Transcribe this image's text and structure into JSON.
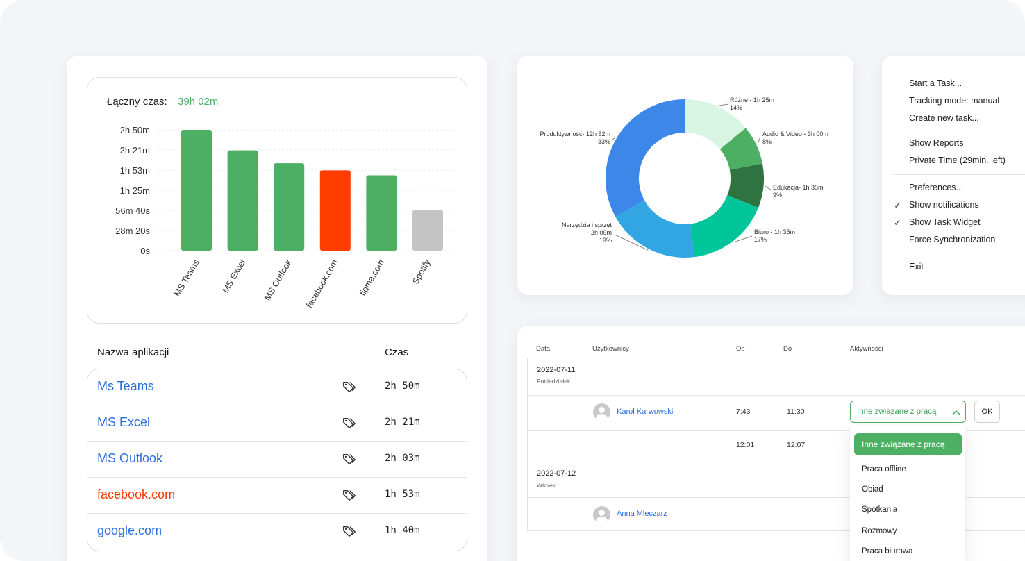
{
  "colors": {
    "accent_green": "#4caf63",
    "link_blue": "#2b6fde",
    "alert_red": "#f53a05",
    "neutral_gray": "#c4c4c4"
  },
  "summary": {
    "total_label": "Łączny czas:",
    "total_value": "39h 02m"
  },
  "chart_data": [
    {
      "type": "bar",
      "categories": [
        "MS Teams",
        "MS Excel",
        "MS Outlook",
        "facebook.com",
        "figma.com",
        "Spotify"
      ],
      "values_minutes": [
        170,
        141,
        123,
        113,
        106,
        57
      ],
      "bar_colors": [
        "#4caf63",
        "#4caf63",
        "#4caf63",
        "#ff3d00",
        "#4caf63",
        "#c4c4c4"
      ],
      "yticks": [
        "2h 50m",
        "2h 21m",
        "1h 53m",
        "1h 25m",
        "56m 40s",
        "28m 20s",
        "0s"
      ],
      "ylim_minutes": [
        0,
        170
      ],
      "grid": true
    },
    {
      "type": "pie",
      "donut": true,
      "slices": [
        {
          "label": "Różne - 1h 25m",
          "percent_label": "14%",
          "value": 14,
          "color": "#d8f5e3"
        },
        {
          "label": "Audio & Video - 3h 00m",
          "percent_label": "8%",
          "value": 8,
          "color": "#4caf63"
        },
        {
          "label": "Edukacja- 1h 35m",
          "percent_label": "9%",
          "value": 9,
          "color": "#2e7340"
        },
        {
          "label": "Biuro - 1h 35m",
          "percent_label": "17%",
          "value": 17,
          "color": "#00c49a"
        },
        {
          "label_line1": "Narzędzia i sprzęt",
          "label_line2": "- 2h 09m",
          "percent_label": "19%",
          "value": 19,
          "color": "#32a5e3"
        },
        {
          "label": "Produktywność- 12h 52m",
          "percent_label": "33%",
          "value": 33,
          "color": "#3d87e8"
        }
      ]
    }
  ],
  "app_table": {
    "col_name": "Nazwa aplikacji",
    "col_time": "Czas",
    "rows": [
      {
        "name": "Ms Teams",
        "time": "2h 50m",
        "color": "#2b6fde"
      },
      {
        "name": "MS Excel",
        "time": "2h 21m",
        "color": "#2b6fde"
      },
      {
        "name": "MS Outlook",
        "time": "2h 03m",
        "color": "#2b6fde"
      },
      {
        "name": "facebook.com",
        "time": "1h 53m",
        "color": "#f53a05"
      },
      {
        "name": "google.com",
        "time": "1h 40m",
        "color": "#2b6fde"
      }
    ]
  },
  "menu": {
    "items": [
      "Start a Task...",
      "Tracking mode: manual",
      "Create new task...",
      "Show Reports",
      "Private Time (29min. left)",
      "Preferences...",
      "Show notifications",
      "Show Task Widget",
      "Force Synchronization",
      "Exit"
    ],
    "check": "✓"
  },
  "timesheet": {
    "headers": {
      "date": "Data",
      "users": "Użytkownicy",
      "from": "Od",
      "to": "Do",
      "activities": "Aktywności"
    },
    "day1": {
      "date": "2022-07-11",
      "weekday": "Poniedziałek"
    },
    "row1": {
      "user": "Karol Karwowski",
      "from": "7:43",
      "to": "11:30",
      "activity": "Inne związane z pracą",
      "ok": "OK"
    },
    "row2": {
      "from": "12:01",
      "to": "12:07"
    },
    "day2": {
      "date": "2022-07-12",
      "weekday": "Wtorek"
    },
    "row3": {
      "user": "Anna Mleczarz"
    },
    "dropdown": [
      "Inne związane z pracą",
      "Praca offline",
      "Obiad",
      "Spotkania",
      "Rozmowy",
      "Praca biurowa"
    ]
  }
}
